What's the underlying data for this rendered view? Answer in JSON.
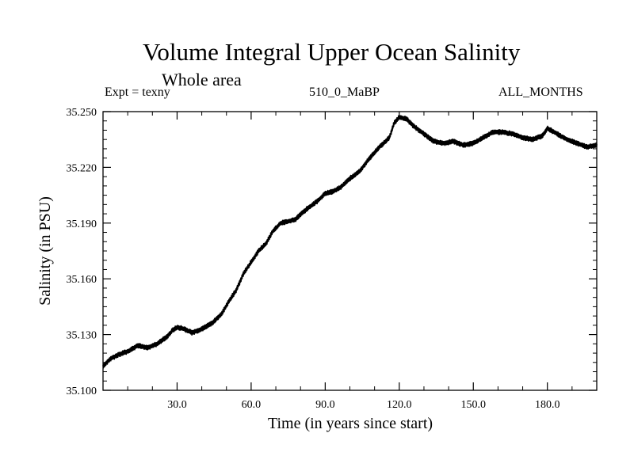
{
  "chart_data": {
    "type": "line",
    "title": "Volume Integral Upper Ocean Salinity",
    "subtitle": "Whole area",
    "annotations": {
      "left": "Expt = texny",
      "center": "510_0_MaBP",
      "right": "ALL_MONTHS"
    },
    "xlabel": "Time (in years since start)",
    "ylabel": "Salinity (in PSU)",
    "xlim": [
      0,
      200
    ],
    "ylim": [
      35.1,
      35.25
    ],
    "x_ticks": [
      30,
      60,
      90,
      120,
      150,
      180
    ],
    "x_tick_labels": [
      "30.0",
      "60.0",
      "90.0",
      "120.0",
      "150.0",
      "180.0"
    ],
    "y_ticks": [
      35.1,
      35.13,
      35.16,
      35.19,
      35.22,
      35.25
    ],
    "y_tick_labels": [
      "35.100",
      "35.130",
      "35.160",
      "35.190",
      "35.220",
      "35.250"
    ],
    "x_minor_step": 10,
    "y_minor_step": 0.005,
    "grid": false,
    "legend": "none",
    "series": [
      {
        "name": "salinity",
        "x": [
          0,
          3,
          6,
          10,
          14,
          18,
          22,
          26,
          28,
          30,
          33,
          36,
          40,
          44,
          48,
          51,
          54,
          57,
          60,
          63,
          66,
          69,
          72,
          75,
          78,
          81,
          84,
          87,
          90,
          93,
          96,
          100,
          104,
          108,
          112,
          116,
          118,
          120,
          123,
          126,
          130,
          134,
          138,
          142,
          146,
          150,
          154,
          158,
          162,
          166,
          170,
          174,
          178,
          180,
          184,
          188,
          192,
          196,
          200
        ],
        "y": [
          35.113,
          35.117,
          35.119,
          35.121,
          35.124,
          35.123,
          35.125,
          35.129,
          35.132,
          35.134,
          35.133,
          35.131,
          35.133,
          35.136,
          35.141,
          35.148,
          35.154,
          35.163,
          35.169,
          35.175,
          35.179,
          35.186,
          35.19,
          35.191,
          35.192,
          35.196,
          35.199,
          35.202,
          35.206,
          35.207,
          35.209,
          35.214,
          35.218,
          35.225,
          35.231,
          35.236,
          35.244,
          35.247,
          35.246,
          35.242,
          35.238,
          35.234,
          35.233,
          35.234,
          35.232,
          35.233,
          35.236,
          35.239,
          35.239,
          35.238,
          35.236,
          35.235,
          35.237,
          35.241,
          35.238,
          35.235,
          35.233,
          35.231,
          35.232
        ]
      }
    ]
  }
}
